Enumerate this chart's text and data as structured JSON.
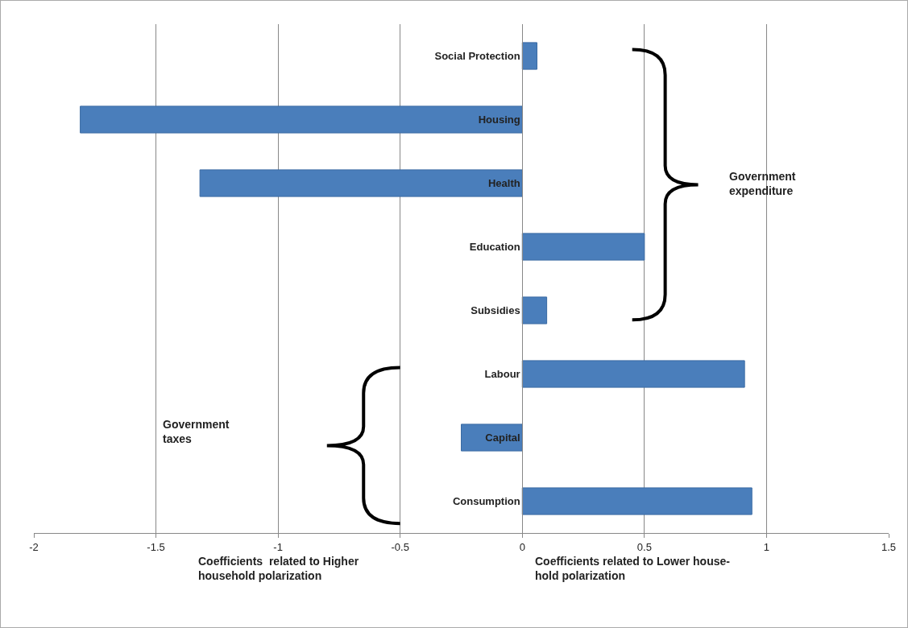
{
  "chart_data": {
    "type": "bar",
    "orientation": "horizontal",
    "categories": [
      "Social Protection",
      "Housing",
      "Health",
      "Education",
      "Subsidies",
      "Labour",
      "Capital",
      "Consumption"
    ],
    "values": [
      0.06,
      -1.81,
      -1.32,
      0.5,
      0.1,
      0.91,
      -0.25,
      0.94
    ],
    "color": "#4a7ebb",
    "xlim": [
      -2,
      1.5
    ],
    "xticks": [
      -2,
      -1.5,
      -1,
      -0.5,
      0,
      0.5,
      1,
      1.5
    ],
    "grid": "x",
    "annotations": [
      "Government\nexpenditure",
      "Government\ntaxes",
      "Coefficients  related to Higher\nhousehold polarization",
      "Coefficients related to Lower house-\nhold polarization"
    ]
  }
}
